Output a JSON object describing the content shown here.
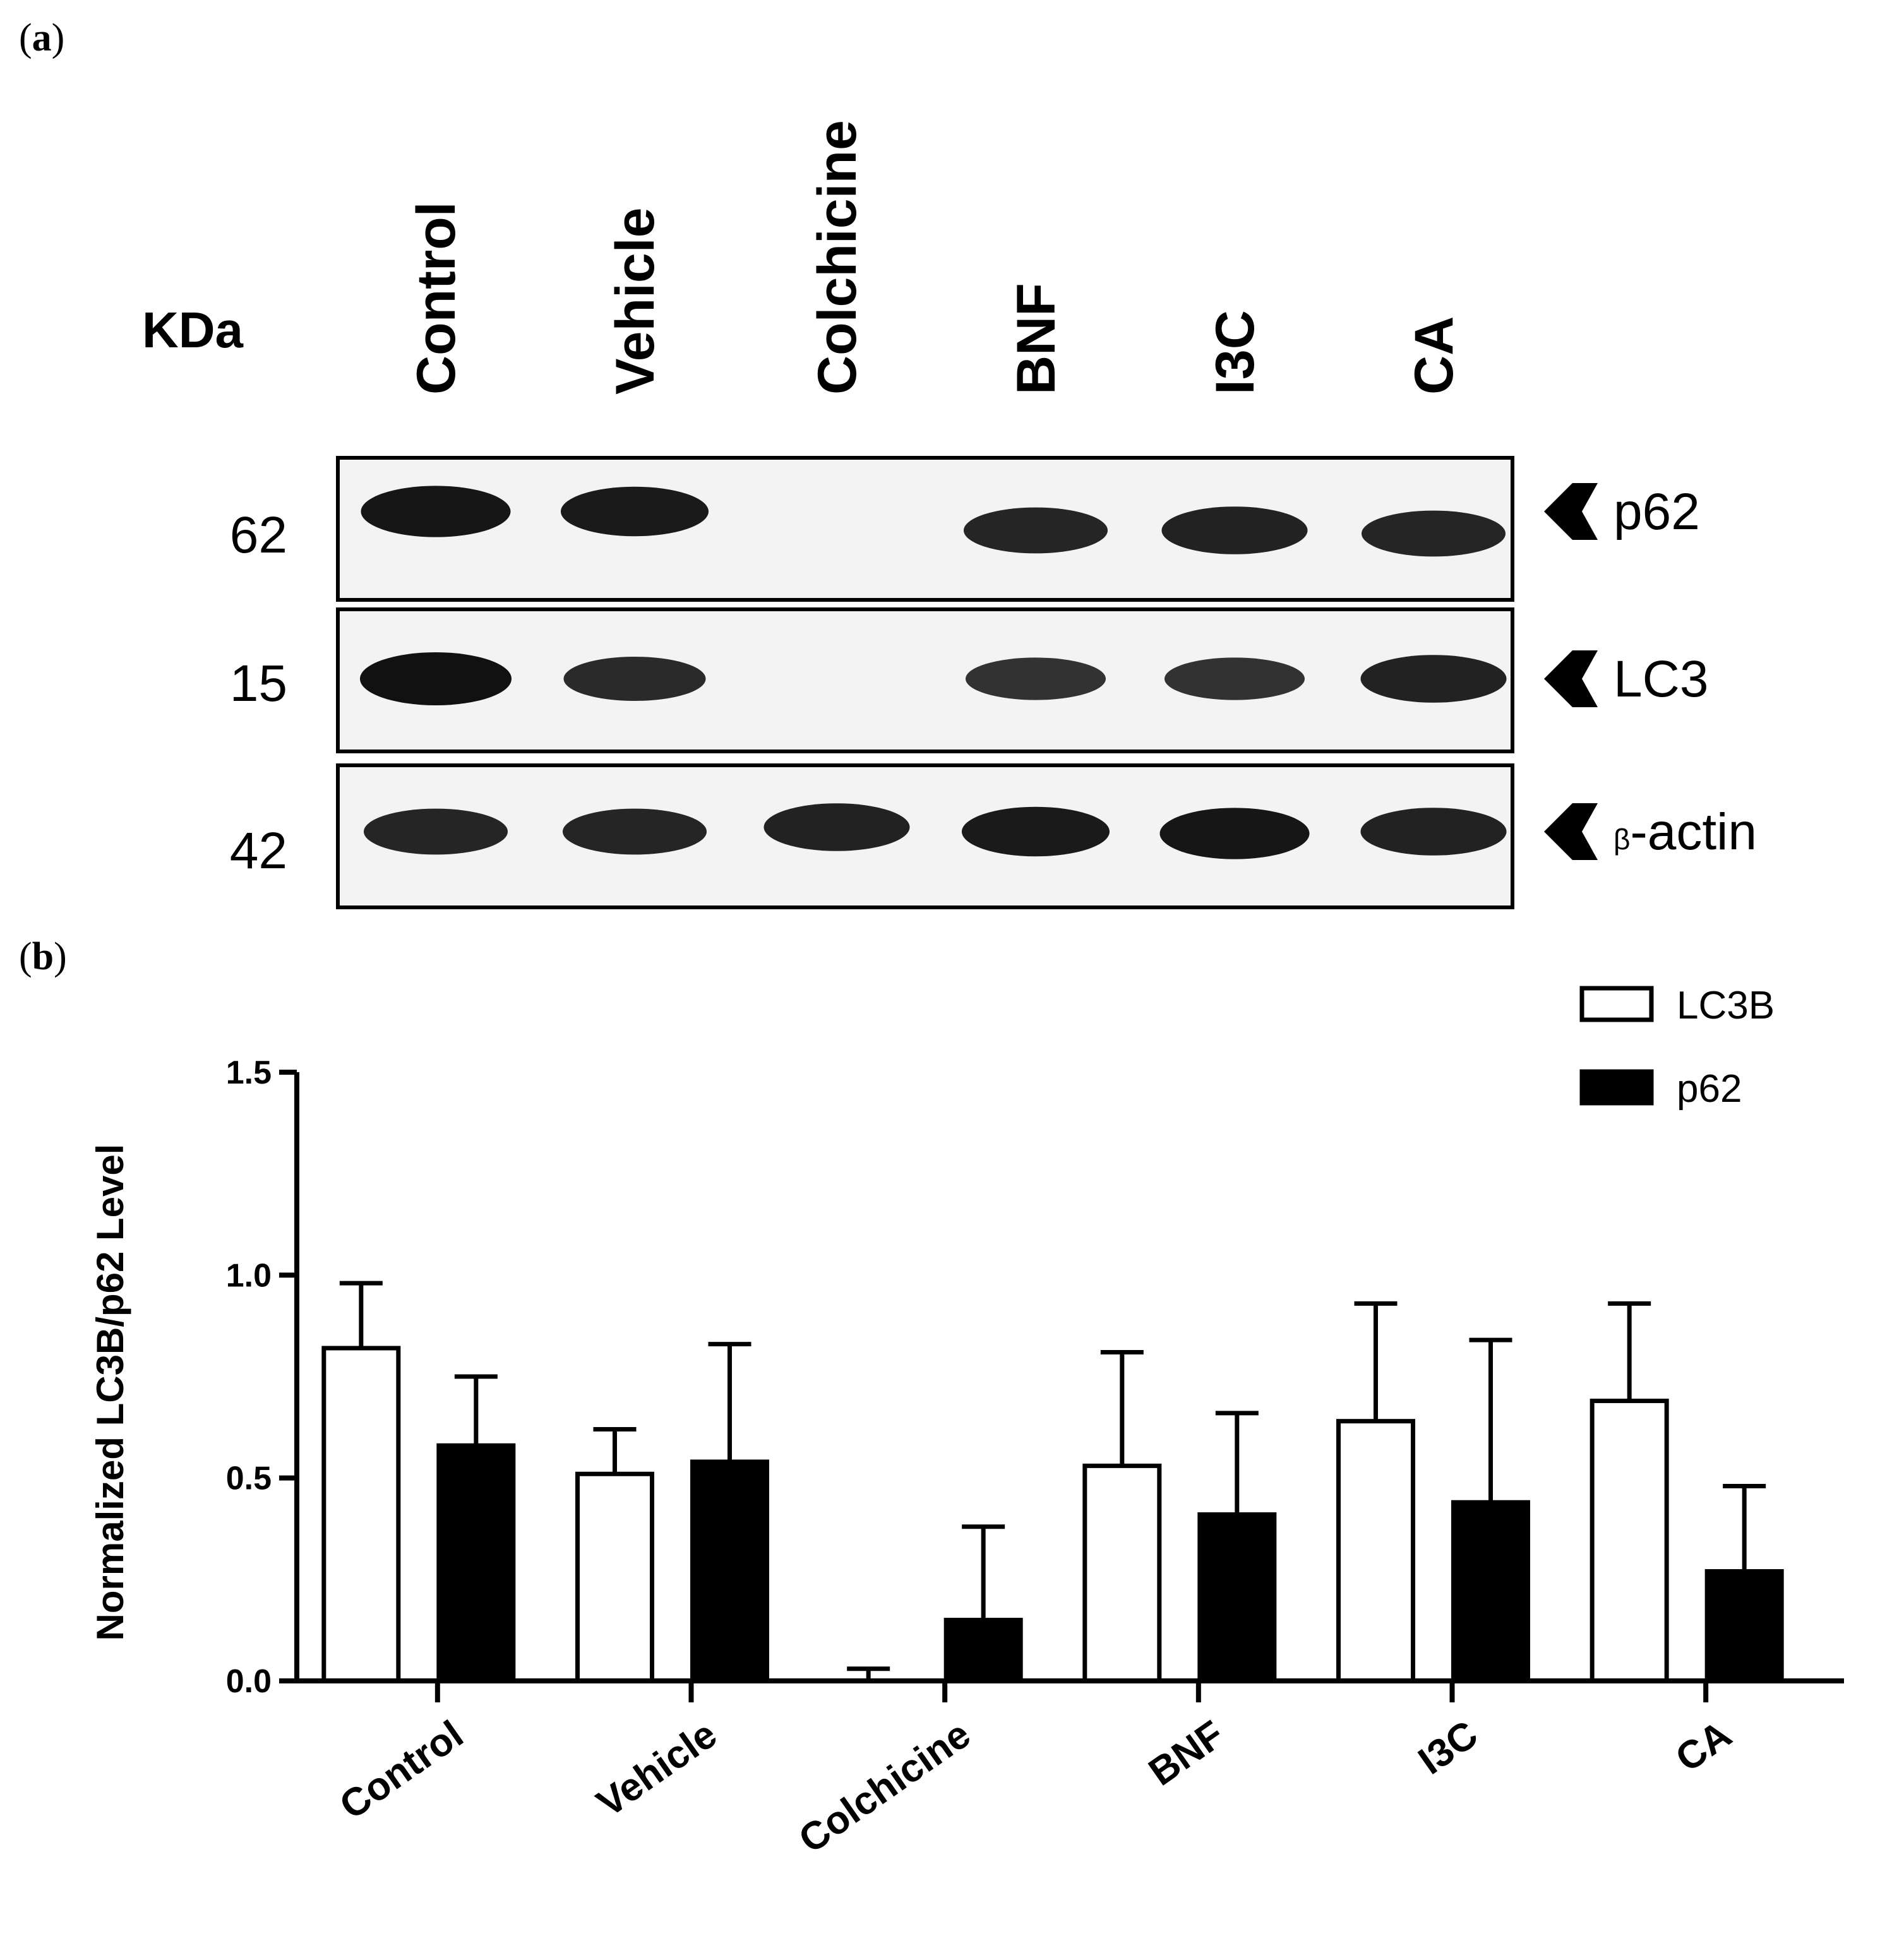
{
  "panels": {
    "a": {
      "label_open": "(",
      "label_letter": "a",
      "label_close": ")"
    },
    "b": {
      "label_open": "(",
      "label_letter": "b",
      "label_close": ")"
    }
  },
  "blot": {
    "kda_header": "KDa",
    "lanes": [
      "Control",
      "Vehicle",
      "Colchicine",
      "BNF",
      "I3C",
      "CA"
    ],
    "strips": [
      {
        "marker": "62",
        "name": "p62",
        "intensity": [
          0.95,
          0.9,
          0.0,
          0.8,
          0.85,
          0.8
        ]
      },
      {
        "marker": "15",
        "name": "LC3",
        "intensity": [
          1.0,
          0.75,
          0.0,
          0.7,
          0.7,
          0.85
        ]
      },
      {
        "marker": "42",
        "name_prefix": "β",
        "name": "-actin",
        "intensity": [
          0.8,
          0.8,
          0.85,
          0.9,
          0.95,
          0.85
        ]
      }
    ],
    "colors": {
      "band": "#111111",
      "strip_bg": "#f3f3f3",
      "border": "#000000"
    }
  },
  "chart_data": {
    "type": "bar",
    "categories": [
      "Control",
      "Vehicle",
      "Colchicine",
      "BNF",
      "I3C",
      "CA"
    ],
    "series": [
      {
        "name": "LC3B",
        "fill": "#ffffff",
        "values": [
          0.82,
          0.51,
          0.0,
          0.53,
          0.64,
          0.69
        ],
        "error": [
          0.16,
          0.11,
          0.03,
          0.28,
          0.29,
          0.24
        ]
      },
      {
        "name": "p62",
        "fill": "#000000",
        "values": [
          0.58,
          0.54,
          0.15,
          0.41,
          0.44,
          0.27
        ],
        "error": [
          0.17,
          0.29,
          0.23,
          0.25,
          0.4,
          0.21
        ]
      }
    ],
    "ylabel": "Normalized LC3B/p62 Level",
    "xlabel": "",
    "ylim": [
      0,
      1.5
    ],
    "yticks": [
      "0.0",
      "0.5",
      "1.0",
      "1.5"
    ],
    "legend_position": "top-right",
    "grid": false
  }
}
